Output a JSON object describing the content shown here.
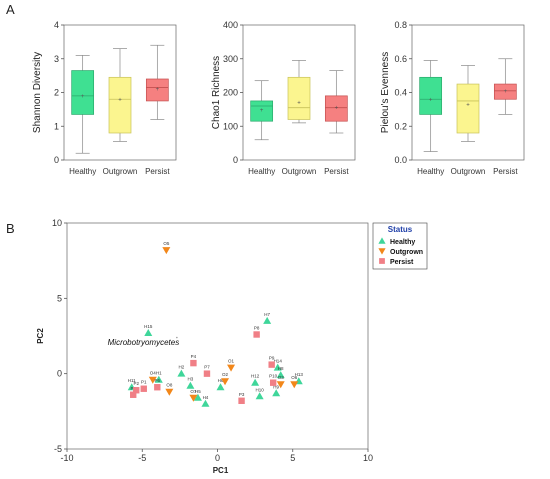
{
  "panels": {
    "a_label": "A",
    "b_label": "B"
  },
  "colors": {
    "healthy": "#3fe092",
    "outgrown": "#fbf58f",
    "persist": "#f58080",
    "healthy_marker": "#3fd69a",
    "outgrown_marker": "#f2871a",
    "persist_marker": "#f07f86",
    "legend_title": "#1f3fa8"
  },
  "chart_data": [
    {
      "type": "box",
      "ylabel": "Shannon Diversity",
      "ylim": [
        0,
        4
      ],
      "yticks": [
        "0",
        "1",
        "2",
        "3",
        "4"
      ],
      "categories": [
        "Healthy",
        "Outgrown",
        "Persist"
      ],
      "boxes": [
        {
          "category": "Healthy",
          "min": 0.2,
          "q1": 1.35,
          "median": 1.9,
          "q3": 2.65,
          "max": 3.1,
          "mean": 1.9
        },
        {
          "category": "Outgrown",
          "min": 0.55,
          "q1": 0.8,
          "median": 1.8,
          "q3": 2.45,
          "max": 3.3,
          "mean": 1.8
        },
        {
          "category": "Persist",
          "min": 1.2,
          "q1": 1.75,
          "median": 2.15,
          "q3": 2.4,
          "max": 3.4,
          "mean": 2.1
        }
      ]
    },
    {
      "type": "box",
      "ylabel": "Chao1 Richness",
      "ylim": [
        0,
        400
      ],
      "yticks": [
        "0",
        "100",
        "200",
        "300",
        "400"
      ],
      "categories": [
        "Healthy",
        "Outgrown",
        "Persist"
      ],
      "boxes": [
        {
          "category": "Healthy",
          "min": 60,
          "q1": 115,
          "median": 160,
          "q3": 175,
          "max": 235,
          "mean": 148
        },
        {
          "category": "Outgrown",
          "min": 110,
          "q1": 120,
          "median": 155,
          "q3": 245,
          "max": 295,
          "mean": 170
        },
        {
          "category": "Persist",
          "min": 80,
          "q1": 115,
          "median": 155,
          "q3": 190,
          "max": 265,
          "mean": 155
        }
      ]
    },
    {
      "type": "box",
      "ylabel": "Pielou's Evenness",
      "ylim": [
        0,
        0.8
      ],
      "yticks": [
        "0.0",
        "0.2",
        "0.4",
        "0.6",
        "0.8"
      ],
      "categories": [
        "Healthy",
        "Outgrown",
        "Persist"
      ],
      "boxes": [
        {
          "category": "Healthy",
          "min": 0.05,
          "q1": 0.27,
          "median": 0.36,
          "q3": 0.49,
          "max": 0.59,
          "mean": 0.36
        },
        {
          "category": "Outgrown",
          "min": 0.11,
          "q1": 0.16,
          "median": 0.35,
          "q3": 0.45,
          "max": 0.56,
          "mean": 0.33
        },
        {
          "category": "Persist",
          "min": 0.27,
          "q1": 0.36,
          "median": 0.41,
          "q3": 0.45,
          "max": 0.6,
          "mean": 0.41
        }
      ]
    },
    {
      "type": "scatter",
      "xlabel": "PC1",
      "ylabel": "PC2",
      "xlim": [
        -10,
        10
      ],
      "ylim": [
        -5,
        10
      ],
      "xticks": [
        "-10",
        "-5",
        "0",
        "5",
        "10"
      ],
      "yticks": [
        "-5",
        "0",
        "5",
        "10"
      ],
      "legend_title": "Status",
      "legend_position": "top-right",
      "annotation": "Microbotryomycetes",
      "series": [
        {
          "name": "Healthy",
          "marker": "triangle-up",
          "points": [
            {
              "label": "H15",
              "x": -4.6,
              "y": 2.7
            },
            {
              "label": "H7",
              "x": 3.3,
              "y": 3.5
            },
            {
              "label": "H11",
              "x": -5.7,
              "y": -0.9
            },
            {
              "label": "H1",
              "x": -3.9,
              "y": -0.4
            },
            {
              "label": "H2",
              "x": -2.4,
              "y": 0.0
            },
            {
              "label": "H3",
              "x": -1.8,
              "y": -0.8
            },
            {
              "label": "H5",
              "x": -1.3,
              "y": -1.6
            },
            {
              "label": "H4",
              "x": -0.8,
              "y": -2.0
            },
            {
              "label": "H6",
              "x": 0.2,
              "y": -0.9
            },
            {
              "label": "H12",
              "x": 2.5,
              "y": -0.6
            },
            {
              "label": "H10",
              "x": 2.8,
              "y": -1.5
            },
            {
              "label": "H14",
              "x": 4.0,
              "y": 0.4
            },
            {
              "label": "H9",
              "x": 3.9,
              "y": -1.3
            },
            {
              "label": "H8",
              "x": 4.2,
              "y": -0.1
            },
            {
              "label": "H13",
              "x": 5.4,
              "y": -0.5
            }
          ]
        },
        {
          "name": "Outgrown",
          "marker": "triangle-down",
          "points": [
            {
              "label": "O5",
              "x": -3.4,
              "y": 8.2
            },
            {
              "label": "O1",
              "x": 0.9,
              "y": 0.4
            },
            {
              "label": "O2",
              "x": 0.5,
              "y": -0.5
            },
            {
              "label": "O7",
              "x": -1.6,
              "y": -1.6
            },
            {
              "label": "O8",
              "x": -3.2,
              "y": -1.2
            },
            {
              "label": "O4",
              "x": -4.3,
              "y": -0.4
            },
            {
              "label": "O3",
              "x": 4.2,
              "y": -0.7
            },
            {
              "label": "O6",
              "x": 5.1,
              "y": -0.7
            }
          ]
        },
        {
          "name": "Persist",
          "marker": "square",
          "points": [
            {
              "label": "P8",
              "x": 2.6,
              "y": 2.6
            },
            {
              "label": "P4",
              "x": -1.6,
              "y": 0.7
            },
            {
              "label": "P7",
              "x": -0.7,
              "y": 0.0
            },
            {
              "label": "P1",
              "x": -4.9,
              "y": -1.0
            },
            {
              "label": "P5",
              "x": -5.6,
              "y": -1.4
            },
            {
              "label": "P6",
              "x": -4.0,
              "y": -0.9
            },
            {
              "label": "P2",
              "x": -5.4,
              "y": -1.1
            },
            {
              "label": "P3",
              "x": 1.6,
              "y": -1.8
            },
            {
              "label": "P9",
              "x": 3.6,
              "y": 0.6
            },
            {
              "label": "P10",
              "x": 3.7,
              "y": -0.6
            }
          ]
        }
      ]
    }
  ]
}
